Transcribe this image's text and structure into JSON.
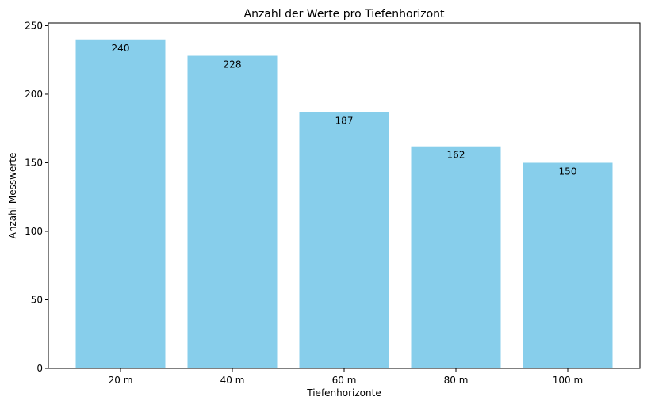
{
  "chart_data": {
    "type": "bar",
    "title": "Anzahl der Werte pro Tiefenhorizont",
    "xlabel": "Tiefenhorizonte",
    "ylabel": "Anzahl Messwerte",
    "categories": [
      "20 m",
      "40 m",
      "60 m",
      "80 m",
      "100 m"
    ],
    "values": [
      240,
      228,
      187,
      162,
      150
    ],
    "data_labels": [
      "240",
      "228",
      "187",
      "162",
      "150"
    ],
    "yticks": [
      0,
      50,
      100,
      150,
      200,
      250
    ],
    "ylim": [
      0,
      252
    ],
    "bar_color": "#87ceeb",
    "grid": false,
    "legend": "none"
  }
}
